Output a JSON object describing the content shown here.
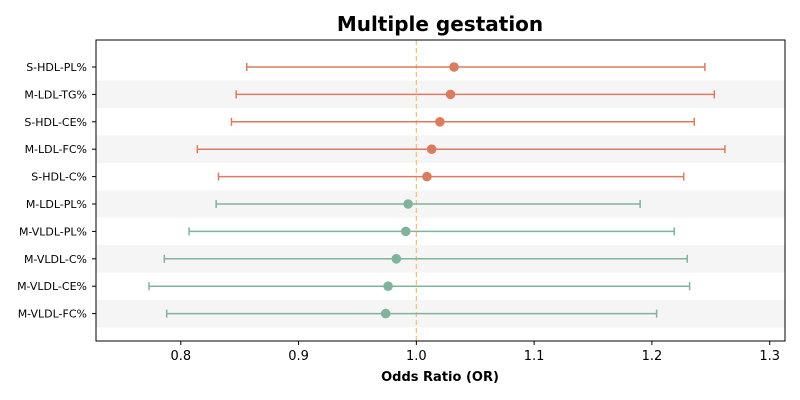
{
  "chart_data": {
    "type": "forest",
    "title": "Multiple gestation",
    "xlabel": "Odds Ratio (OR)",
    "ylabel": "",
    "xlim": [
      0.728,
      1.313
    ],
    "xticks": [
      0.8,
      0.9,
      1.0,
      1.1,
      1.2,
      1.3
    ],
    "xtick_labels": [
      "0.8",
      "0.9",
      "1.0",
      "1.1",
      "1.2",
      "1.3"
    ],
    "reference_line": 1.0,
    "grid": false,
    "colors": {
      "positive": "#db7b5f",
      "negative": "#7fb39b",
      "reference": "#f4c07a",
      "band": "#f5f5f5"
    },
    "rows": [
      {
        "label": "S-HDL-PL%",
        "or": 1.032,
        "lower": 0.856,
        "upper": 1.245,
        "group": "positive"
      },
      {
        "label": "M-LDL-TG%",
        "or": 1.029,
        "lower": 0.847,
        "upper": 1.253,
        "group": "positive"
      },
      {
        "label": "S-HDL-CE%",
        "or": 1.02,
        "lower": 0.843,
        "upper": 1.236,
        "group": "positive"
      },
      {
        "label": "M-LDL-FC%",
        "or": 1.013,
        "lower": 0.814,
        "upper": 1.262,
        "group": "positive"
      },
      {
        "label": "S-HDL-C%",
        "or": 1.009,
        "lower": 0.832,
        "upper": 1.227,
        "group": "positive"
      },
      {
        "label": "M-LDL-PL%",
        "or": 0.993,
        "lower": 0.83,
        "upper": 1.19,
        "group": "negative"
      },
      {
        "label": "M-VLDL-PL%",
        "or": 0.991,
        "lower": 0.807,
        "upper": 1.219,
        "group": "negative"
      },
      {
        "label": "M-VLDL-C%",
        "or": 0.983,
        "lower": 0.786,
        "upper": 1.23,
        "group": "negative"
      },
      {
        "label": "M-VLDL-CE%",
        "or": 0.976,
        "lower": 0.773,
        "upper": 1.232,
        "group": "negative"
      },
      {
        "label": "M-VLDL-FC%",
        "or": 0.974,
        "lower": 0.788,
        "upper": 1.204,
        "group": "negative"
      }
    ]
  }
}
